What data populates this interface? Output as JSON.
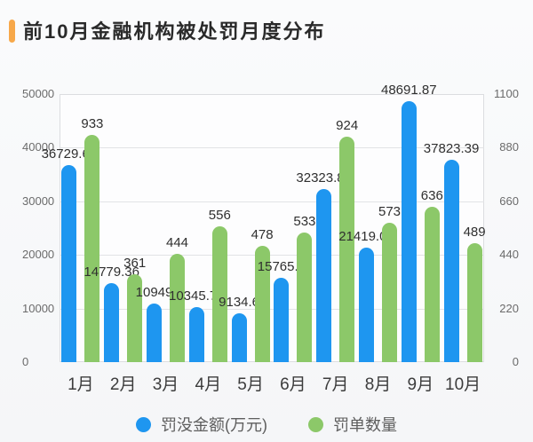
{
  "page": {
    "title": "前10月金融机构被处罚月度分布",
    "accent_color": "#F7A84A"
  },
  "chart_data": {
    "type": "bar",
    "title": "前10月金融机构被处罚月度分布",
    "categories": [
      "1月",
      "2月",
      "3月",
      "4月",
      "5月",
      "6月",
      "7月",
      "8月",
      "9月",
      "10月"
    ],
    "series": [
      {
        "name": "罚没金额(万元)",
        "color": "#1E96F0",
        "axis": "left",
        "values": [
          36729.68,
          14779.36,
          10949,
          10345.76,
          9134.6,
          15765.6,
          32323.81,
          21419.03,
          48691.87,
          37823.39
        ],
        "labels": [
          "36729.68",
          "14779.36",
          "10949",
          "10345.76",
          "9134.6",
          "15765.6",
          "32323.81",
          "21419.03",
          "48691.87",
          "37823.39"
        ]
      },
      {
        "name": "罚单数量",
        "color": "#8CC869",
        "axis": "right",
        "values": [
          933,
          361,
          444,
          556,
          478,
          533,
          924,
          573,
          636,
          489
        ],
        "labels": [
          "933",
          "361",
          "444",
          "556",
          "478",
          "533",
          "924",
          "573",
          "636",
          "489"
        ]
      }
    ],
    "left_axis": {
      "ticks": [
        "0",
        "10000",
        "20000",
        "30000",
        "40000",
        "50000"
      ],
      "min": 0,
      "max": 50000
    },
    "right_axis": {
      "ticks": [
        "0",
        "220",
        "440",
        "660",
        "880",
        "1100"
      ],
      "min": 0,
      "max": 1100
    },
    "legend": [
      {
        "label": "罚没金额(万元)",
        "color": "#1E96F0"
      },
      {
        "label": "罚单数量",
        "color": "#8CC869"
      }
    ],
    "grid": true,
    "legend_position": "bottom"
  }
}
